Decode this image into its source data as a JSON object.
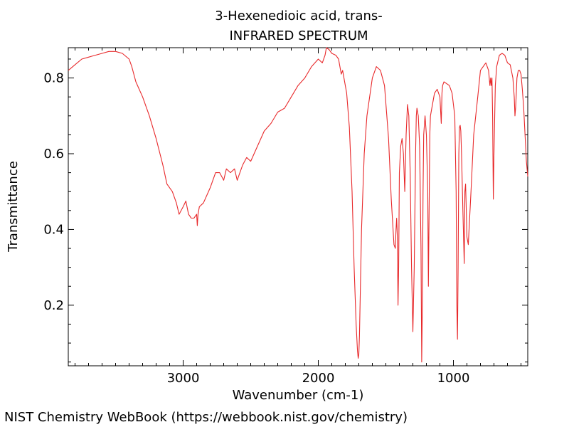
{
  "chart_data": {
    "type": "line",
    "title": "3-Hexenedioic acid, trans-",
    "subtitle": "INFRARED SPECTRUM",
    "xlabel": "Wavenumber (cm-1)",
    "ylabel": "Transmittance",
    "xlim": [
      3850,
      450
    ],
    "ylim": [
      0.04,
      0.88
    ],
    "x_ticks": [
      3000,
      2000,
      1000
    ],
    "x_tick_labels": [
      "3000",
      "2000",
      "1000"
    ],
    "y_ticks": [
      0.2,
      0.4,
      0.6,
      0.8
    ],
    "y_tick_labels": [
      "0.2",
      "0.4",
      "0.6",
      "0.8"
    ],
    "grid": false,
    "line_color": "#e8292b",
    "series": [
      {
        "x": [
          3850,
          3800,
          3750,
          3700,
          3650,
          3600,
          3550,
          3500,
          3450,
          3400,
          3380,
          3350,
          3300,
          3250,
          3200,
          3150,
          3120,
          3080,
          3050,
          3030,
          3000,
          2980,
          2960,
          2940,
          2920,
          2900,
          2895,
          2890,
          2880,
          2850,
          2800,
          2760,
          2730,
          2700,
          2680,
          2650,
          2620,
          2600,
          2580,
          2560,
          2530,
          2500,
          2450,
          2400,
          2350,
          2300,
          2250,
          2200,
          2150,
          2100,
          2050,
          2000,
          1970,
          1950,
          1940,
          1920,
          1900,
          1870,
          1850,
          1830,
          1820,
          1810,
          1790,
          1770,
          1750,
          1735,
          1720,
          1710,
          1705,
          1700,
          1695,
          1680,
          1660,
          1640,
          1600,
          1570,
          1540,
          1510,
          1480,
          1460,
          1440,
          1430,
          1425,
          1420,
          1415,
          1410,
          1405,
          1400,
          1390,
          1380,
          1370,
          1360,
          1350,
          1340,
          1330,
          1320,
          1310,
          1300,
          1290,
          1280,
          1275,
          1270,
          1260,
          1250,
          1240,
          1235,
          1230,
          1225,
          1220,
          1210,
          1200,
          1190,
          1185,
          1180,
          1175,
          1170,
          1160,
          1150,
          1140,
          1120,
          1100,
          1090,
          1085,
          1080,
          1070,
          1050,
          1030,
          1010,
          990,
          980,
          975,
          970,
          965,
          960,
          955,
          950,
          945,
          940,
          930,
          920,
          915,
          910,
          905,
          900,
          890,
          870,
          850,
          820,
          800,
          780,
          760,
          740,
          730,
          725,
          720,
          715,
          710,
          705,
          700,
          690,
          680,
          660,
          640,
          620,
          600,
          580,
          560,
          550,
          545,
          540,
          535,
          530,
          520,
          510,
          500,
          490,
          480,
          470,
          460,
          450
        ],
        "y": [
          0.82,
          0.835,
          0.85,
          0.855,
          0.86,
          0.865,
          0.87,
          0.87,
          0.865,
          0.85,
          0.83,
          0.79,
          0.75,
          0.7,
          0.64,
          0.57,
          0.52,
          0.5,
          0.47,
          0.44,
          0.46,
          0.475,
          0.44,
          0.43,
          0.43,
          0.44,
          0.41,
          0.44,
          0.46,
          0.47,
          0.51,
          0.55,
          0.55,
          0.53,
          0.56,
          0.55,
          0.56,
          0.53,
          0.55,
          0.57,
          0.59,
          0.58,
          0.62,
          0.66,
          0.68,
          0.71,
          0.72,
          0.75,
          0.78,
          0.8,
          0.83,
          0.85,
          0.84,
          0.86,
          0.88,
          0.875,
          0.865,
          0.86,
          0.85,
          0.81,
          0.82,
          0.8,
          0.76,
          0.67,
          0.5,
          0.3,
          0.15,
          0.08,
          0.06,
          0.07,
          0.12,
          0.4,
          0.6,
          0.7,
          0.8,
          0.83,
          0.82,
          0.78,
          0.64,
          0.48,
          0.36,
          0.35,
          0.4,
          0.43,
          0.38,
          0.2,
          0.3,
          0.55,
          0.62,
          0.64,
          0.6,
          0.5,
          0.65,
          0.73,
          0.7,
          0.55,
          0.3,
          0.13,
          0.3,
          0.6,
          0.7,
          0.72,
          0.7,
          0.62,
          0.35,
          0.05,
          0.2,
          0.5,
          0.65,
          0.7,
          0.65,
          0.5,
          0.25,
          0.45,
          0.65,
          0.7,
          0.72,
          0.74,
          0.76,
          0.77,
          0.75,
          0.68,
          0.76,
          0.78,
          0.79,
          0.785,
          0.78,
          0.76,
          0.7,
          0.5,
          0.2,
          0.11,
          0.3,
          0.6,
          0.67,
          0.675,
          0.66,
          0.6,
          0.45,
          0.31,
          0.5,
          0.52,
          0.45,
          0.38,
          0.36,
          0.5,
          0.65,
          0.75,
          0.82,
          0.83,
          0.84,
          0.82,
          0.78,
          0.8,
          0.78,
          0.8,
          0.7,
          0.48,
          0.6,
          0.78,
          0.83,
          0.86,
          0.865,
          0.86,
          0.84,
          0.835,
          0.8,
          0.75,
          0.7,
          0.72,
          0.76,
          0.8,
          0.82,
          0.82,
          0.81,
          0.77,
          0.72,
          0.65,
          0.58,
          0.54
        ]
      }
    ]
  },
  "footer": {
    "credit": "NIST Chemistry WebBook (https://webbook.nist.gov/chemistry)"
  }
}
